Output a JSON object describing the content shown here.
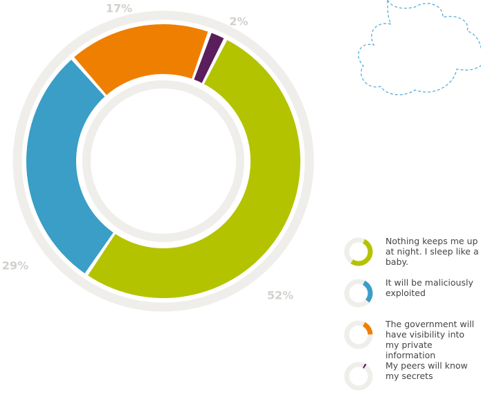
{
  "chart_data": {
    "type": "donut",
    "categories": [
      "Nothing keeps me up at night. I sleep like a baby.",
      "It will be maliciously exploited",
      "The government will have visibility into my private information",
      "My peers will know my secrets"
    ],
    "values": [
      52,
      29,
      17,
      2
    ],
    "value_labels": [
      "52%",
      "29%",
      "17%",
      "2%"
    ],
    "colors": [
      "#b4c300",
      "#3a9ec6",
      "#ef7f00",
      "#5a1e5c"
    ]
  }
}
